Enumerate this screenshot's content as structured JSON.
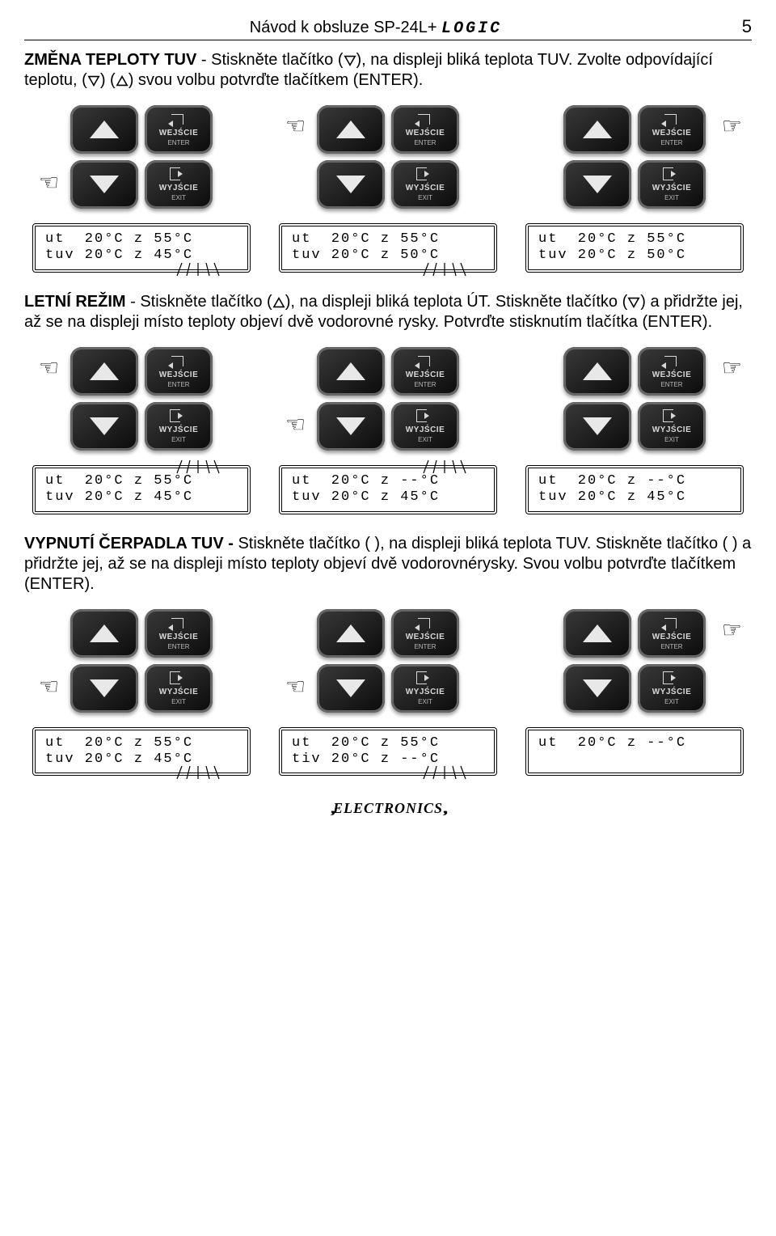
{
  "header": {
    "title_prefix": "Návod k obsluze SP-24L+ ",
    "title_logic": "LOGIC",
    "page_num": "5"
  },
  "btn": {
    "wejscie": "WEJŚCIE",
    "enter": "ENTER",
    "wyjscie": "WYJŚCIE",
    "exit": "EXIT"
  },
  "p1": {
    "bold": "ZMĚNA TEPLOTY TUV",
    "rest1": " - Stiskněte tlačítko (",
    "rest2": "), na displeji bliká teplota TUV. Zvolte odpovídající teplotu, (",
    "rest3": ") (",
    "rest4": ") svou volbu potvrďte tlačítkem (ENTER)."
  },
  "lcd1": {
    "a": "ut  20°C z 55°C\ntuv 20°C z 45°C",
    "b": "ut  20°C z 55°C\ntuv 20°C z 50°C",
    "c": "ut  20°C z 55°C\ntuv 20°C z 50°C"
  },
  "p2": {
    "bold": "LETNÍ REŽIM",
    "rest1": " - Stiskněte tlačítko (",
    "rest2": "), na displeji bliká teplota ÚT. Stiskněte tlačítko (",
    "rest3": ") a přidržte jej, až se na displeji místo teploty objeví dvě vodorovné rysky. Potvrďte stisknutím tlačítka (ENTER)."
  },
  "lcd2": {
    "a": "ut  20°C z 55°C\ntuv 20°C z 45°C",
    "b": "ut  20°C z --°C\ntuv 20°C z 45°C",
    "c": "ut  20°C z --°C\ntuv 20°C z 45°C"
  },
  "p3": {
    "bold": "VYPNUTÍ ČERPADLA TUV - ",
    "rest1": "Stiskněte tlačítko (   ), na displeji bliká teplota TUV. Stiskněte tlačítko (   ) a přidržte jej, až se na displeji místo teploty objeví dvě vodorovnérysky. Svou volbu potvrďte tlačítkem (ENTER)."
  },
  "lcd3": {
    "a": "ut  20°C z 55°C\ntuv 20°C z 45°C",
    "b": "ut  20°C z 55°C\ntiv 20°C z --°C",
    "c": "ut  20°C z --°C\n "
  },
  "footer": "ELECTRONICS"
}
